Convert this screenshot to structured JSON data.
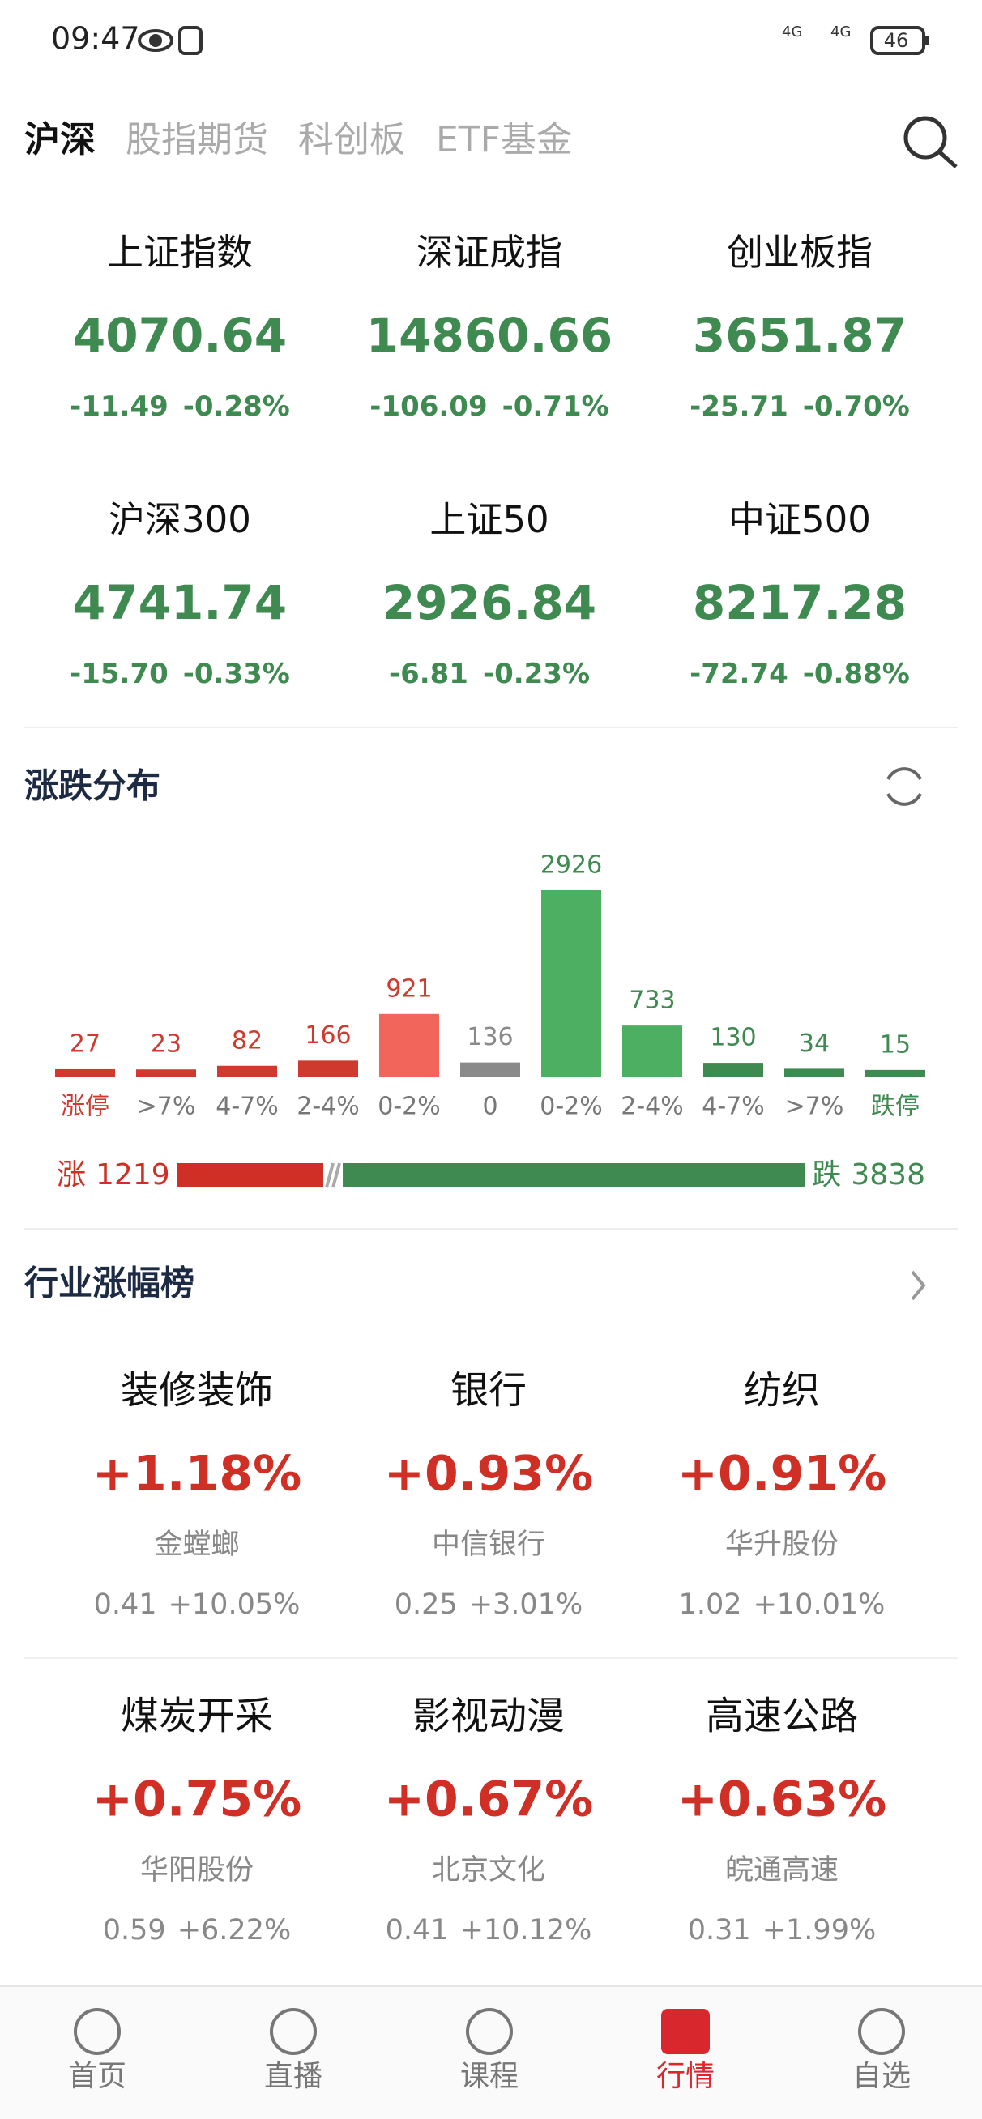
{
  "status_bar": {
    "time": "09:47",
    "network": [
      "4G",
      "4G"
    ],
    "battery": "46"
  },
  "tabs": {
    "items": [
      "沪深",
      "股指期货",
      "科创板",
      "ETF基金"
    ],
    "active": 0
  },
  "indices": [
    {
      "name": "上证指数",
      "price": "4070.64",
      "change": "-11.49",
      "pct": "-0.28%"
    },
    {
      "name": "深证成指",
      "price": "14860.66",
      "change": "-106.09",
      "pct": "-0.71%"
    },
    {
      "name": "创业板指",
      "price": "3651.87",
      "change": "-25.71",
      "pct": "-0.70%"
    },
    {
      "name": "沪深300",
      "price": "4741.74",
      "change": "-15.70",
      "pct": "-0.33%"
    },
    {
      "name": "上证50",
      "price": "2926.84",
      "change": "-6.81",
      "pct": "-0.23%"
    },
    {
      "name": "中证500",
      "price": "8217.28",
      "change": "-72.74",
      "pct": "-0.88%"
    }
  ],
  "distribution": {
    "title": "涨跌分布",
    "categories": [
      "涨停",
      ">7%",
      "4-7%",
      "2-4%",
      "0-2%",
      "0",
      "0-2%",
      "2-4%",
      "4-7%",
      ">7%",
      "跌停"
    ],
    "values": [
      27,
      23,
      82,
      166,
      921,
      136,
      2926,
      733,
      130,
      34,
      15
    ],
    "colors": [
      "#cf3a2e",
      "#cf3a2e",
      "#cf3a2e",
      "#cf3a2e",
      "#f2655a",
      "#8a8a8a",
      "#4caf62",
      "#4caf62",
      "#3e8a50",
      "#3e8a50",
      "#3e8a50"
    ],
    "label_colors": [
      "#cf3a2e",
      "#cf3a2e",
      "#cf3a2e",
      "#cf3a2e",
      "#cf3a2e",
      "#8a8a8a",
      "#3e8a50",
      "#3e8a50",
      "#3e8a50",
      "#3e8a50",
      "#3e8a50"
    ],
    "category_colors": [
      "#cf3a2e",
      "#777777",
      "#777777",
      "#777777",
      "#777777",
      "#777777",
      "#777777",
      "#777777",
      "#777777",
      "#777777",
      "#3e8a50"
    ],
    "rise_label": "涨",
    "rise": 1219,
    "fall_label": "跌",
    "fall": 3838,
    "rise_color": "#cf2f25",
    "fall_color": "#3e8a50"
  },
  "industry": {
    "title": "行业涨幅榜",
    "items": [
      {
        "name": "装修装饰",
        "pct": "+1.18%",
        "stock": "金螳螂",
        "price": "0.41",
        "stock_pct": "+10.05%"
      },
      {
        "name": "银行",
        "pct": "+0.93%",
        "stock": "中信银行",
        "price": "0.25",
        "stock_pct": "+3.01%"
      },
      {
        "name": "纺织",
        "pct": "+0.91%",
        "stock": "华升股份",
        "price": "1.02",
        "stock_pct": "+10.01%"
      },
      {
        "name": "煤炭开采",
        "pct": "+0.75%",
        "stock": "华阳股份",
        "price": "0.59",
        "stock_pct": "+6.22%"
      },
      {
        "name": "影视动漫",
        "pct": "+0.67%",
        "stock": "北京文化",
        "price": "0.41",
        "stock_pct": "+10.12%"
      },
      {
        "name": "高速公路",
        "pct": "+0.63%",
        "stock": "皖通高速",
        "price": "0.31",
        "stock_pct": "+1.99%"
      }
    ]
  },
  "bottom_nav": {
    "items": [
      "首页",
      "直播",
      "课程",
      "行情",
      "自选"
    ],
    "active": 3
  }
}
